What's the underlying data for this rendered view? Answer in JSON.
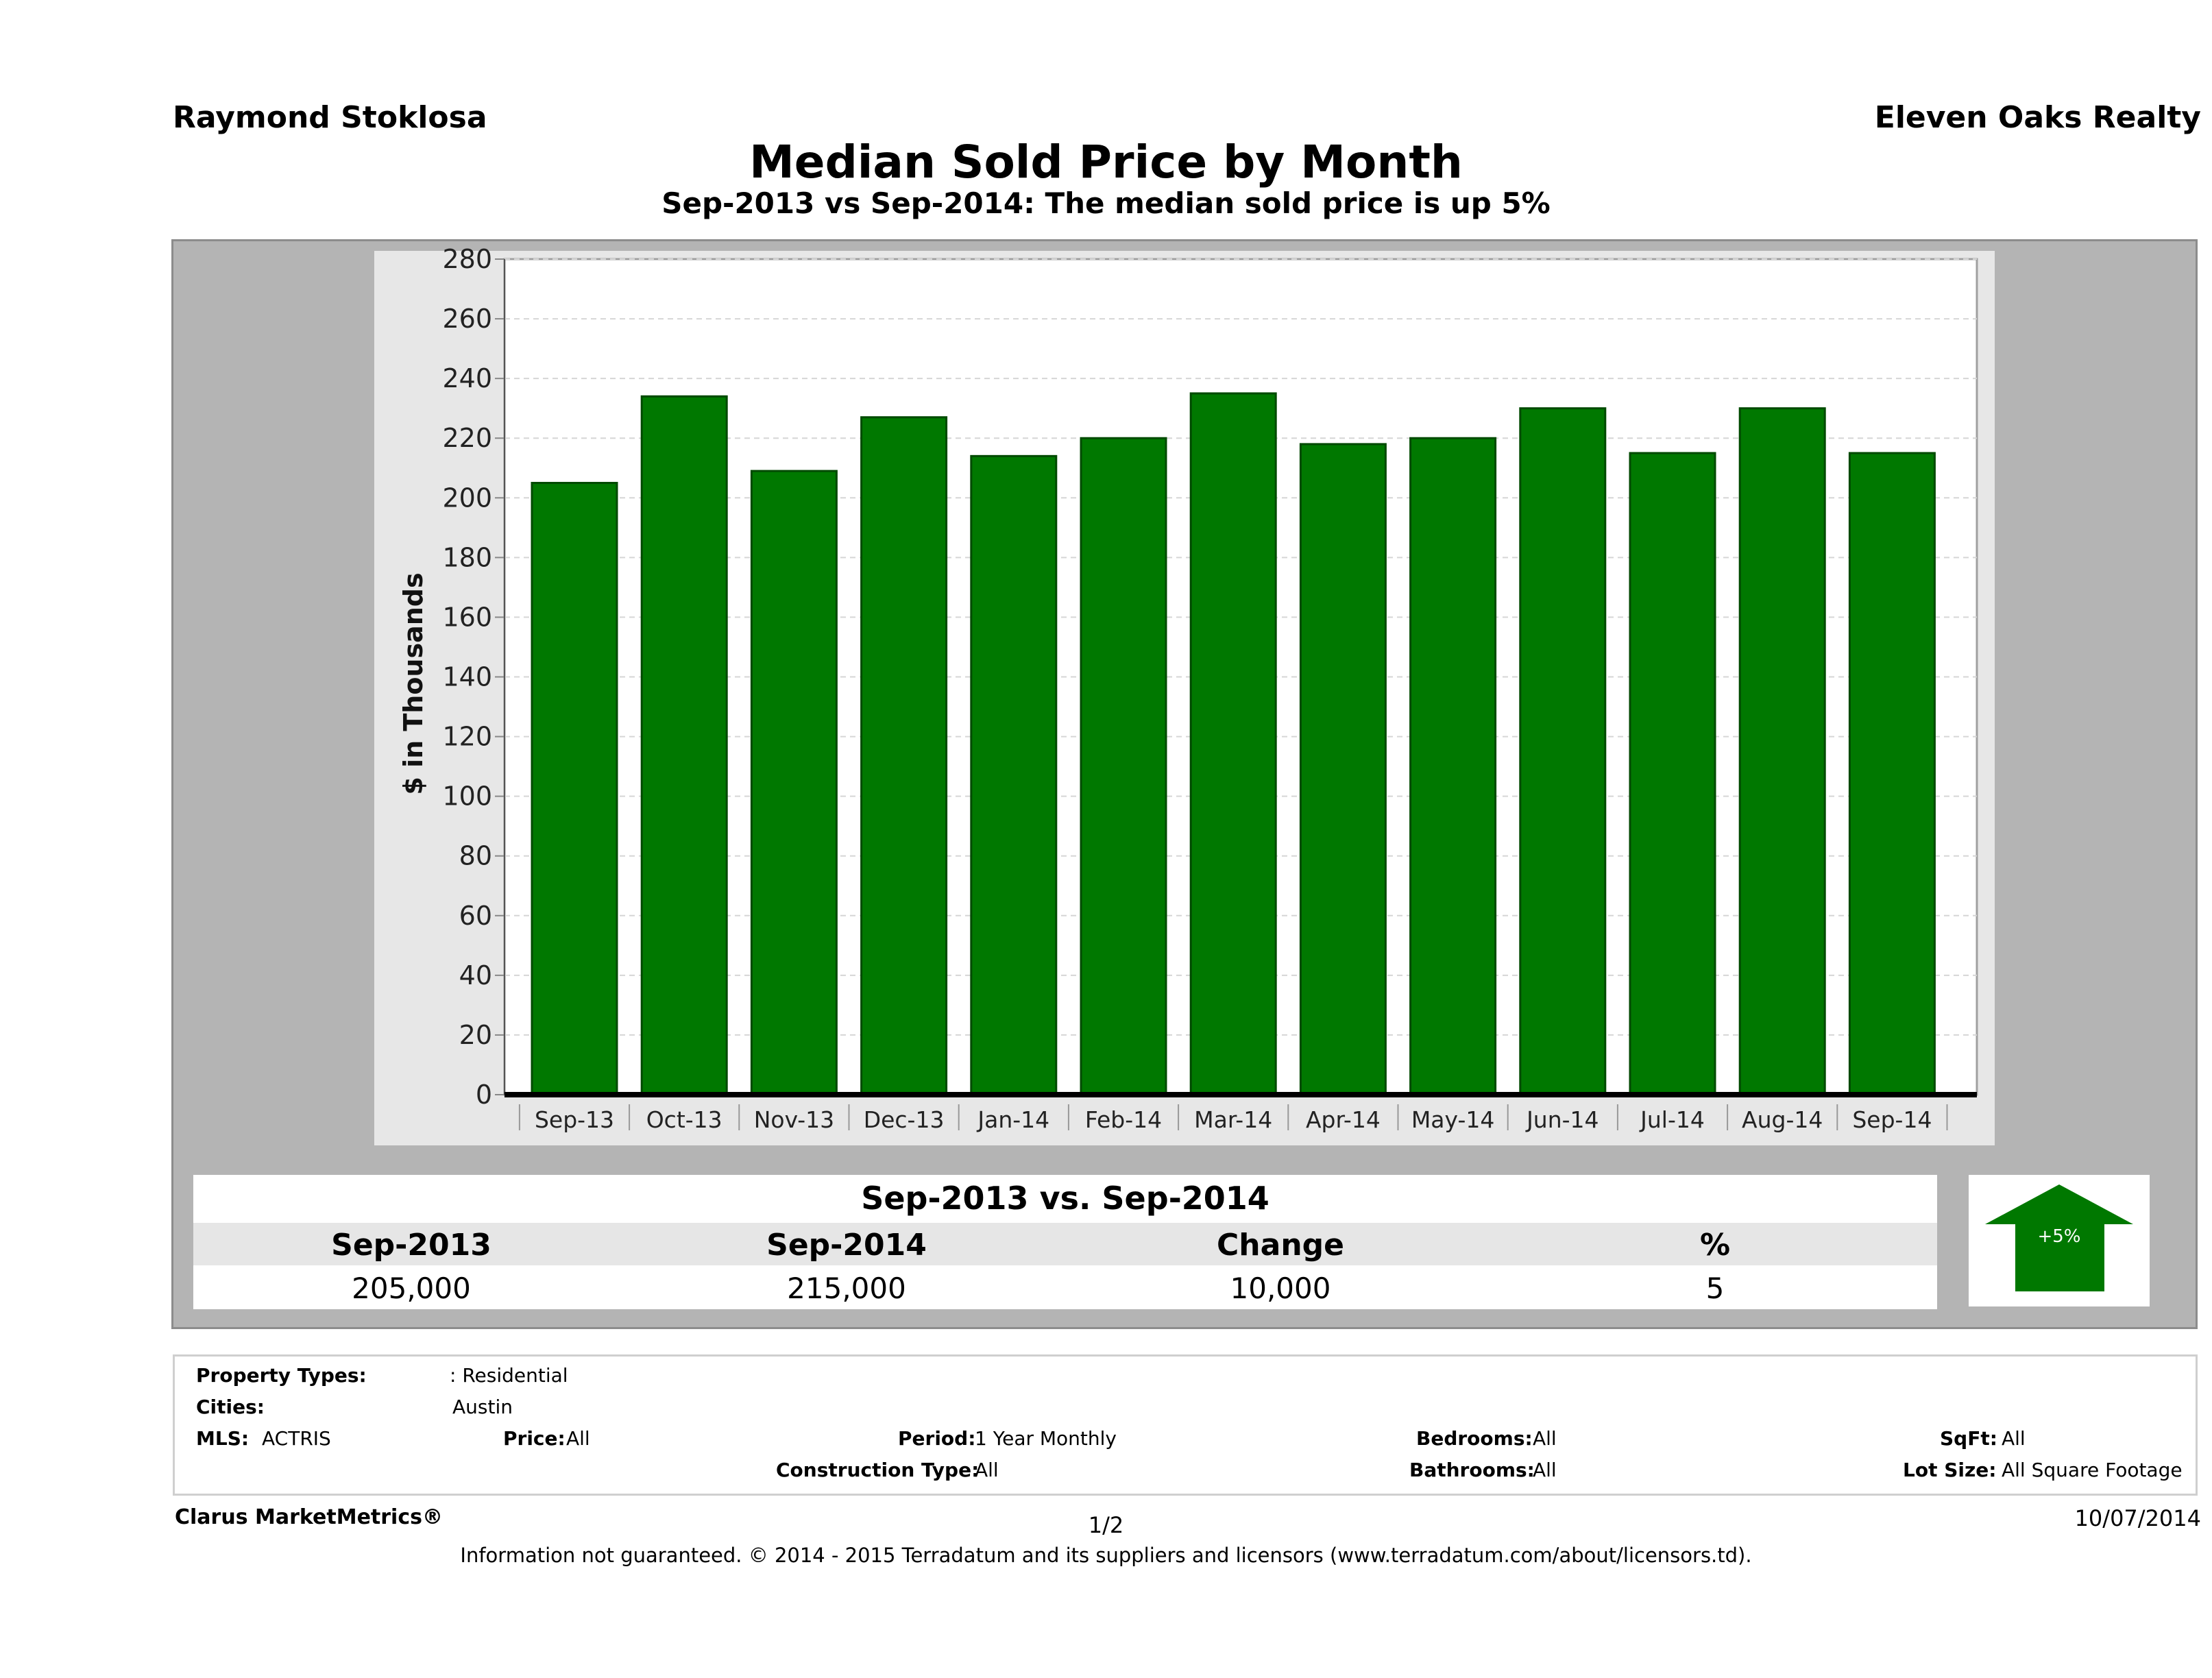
{
  "header": {
    "agent": "Raymond Stoklosa",
    "brokerage": "Eleven Oaks Realty",
    "title": "Median Sold Price by Month",
    "subtitle": "Sep-2013 vs Sep-2014: The median sold price is up 5%"
  },
  "chart_data": {
    "type": "bar",
    "ylabel": "$ in Thousands",
    "ylim": [
      0,
      280
    ],
    "yticks": [
      "0",
      "20",
      "40",
      "60",
      "80",
      "100",
      "120",
      "140",
      "160",
      "180",
      "200",
      "220",
      "240",
      "260",
      "280"
    ],
    "categories": [
      "Sep-13",
      "Oct-13",
      "Nov-13",
      "Dec-13",
      "Jan-14",
      "Feb-14",
      "Mar-14",
      "Apr-14",
      "May-14",
      "Jun-14",
      "Jul-14",
      "Aug-14",
      "Sep-14"
    ],
    "values": [
      205,
      234,
      209,
      227,
      214,
      220,
      235,
      218,
      220,
      230,
      215,
      230,
      215
    ],
    "bar_color": "#007800",
    "grid": true
  },
  "comparison": {
    "title": "Sep-2013 vs. Sep-2014",
    "headers": [
      "Sep-2013",
      "Sep-2014",
      "Change",
      "%"
    ],
    "values": [
      "205,000",
      "215,000",
      "10,000",
      "5"
    ],
    "badge": "+5%",
    "badge_color": "#007800"
  },
  "criteria": {
    "property_types_label": "Property Types:",
    "property_types_value": ": Residential",
    "cities_label": "Cities:",
    "cities_value": "Austin",
    "mls_label": "MLS:",
    "mls_value": "ACTRIS",
    "price_label": "Price:",
    "price_value": "All",
    "period_label": "Period:",
    "period_value": "1 Year Monthly",
    "construction_label": "Construction Type:",
    "construction_value": "All",
    "bedrooms_label": "Bedrooms:",
    "bedrooms_value": "All",
    "bathrooms_label": "Bathrooms:",
    "bathrooms_value": "All",
    "sqft_label": "SqFt:",
    "sqft_value": "All",
    "lotsize_label": "Lot Size:",
    "lotsize_value": "All Square Footage"
  },
  "footer": {
    "product": "Clarus MarketMetrics®",
    "page": "1/2",
    "date": "10/07/2014",
    "disclaimer": "Information not guaranteed. © 2014 - 2015 Terradatum and its suppliers and licensors (www.terradatum.com/about/licensors.td)."
  }
}
